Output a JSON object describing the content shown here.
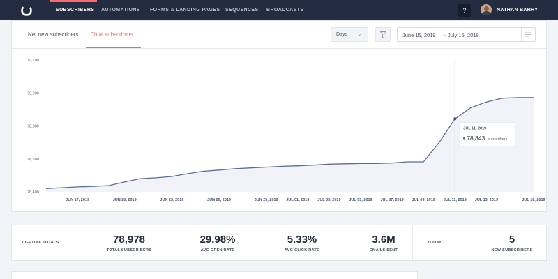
{
  "nav": {
    "logo_icon": "convertkit-logo-icon",
    "items": [
      {
        "label": "SUBSCRIBERS",
        "active": true
      },
      {
        "label": "AUTOMATIONS",
        "active": false
      },
      {
        "label": "FORMS & LANDING PAGES",
        "active": false
      },
      {
        "label": "SEQUENCES",
        "active": false
      },
      {
        "label": "BROADCASTS",
        "active": false
      }
    ],
    "help_label": "?",
    "user_name": "NATHAN BARRY",
    "accent_color": "#fb6970"
  },
  "tabs": [
    {
      "label": "Net new subscribers",
      "active": false
    },
    {
      "label": "Total subscribers",
      "active": true
    }
  ],
  "controls": {
    "interval": "Days",
    "filter_icon": "filter-icon",
    "date_start": "June 15, 2019",
    "date_arrow": "→",
    "date_end": "July 15, 2019",
    "menu_icon": "menu-lines-icon"
  },
  "chart_data": {
    "type": "area",
    "x": [
      "Jun 15",
      "Jun 16",
      "Jun 17",
      "Jun 18",
      "Jun 19",
      "Jun 20",
      "Jun 21",
      "Jun 22",
      "Jun 23",
      "Jun 24",
      "Jun 25",
      "Jun 26",
      "Jun 27",
      "Jun 28",
      "Jun 29",
      "Jun 30",
      "Jul 01",
      "Jul 02",
      "Jul 03",
      "Jul 04",
      "Jul 05",
      "Jul 06",
      "Jul 07",
      "Jul 08",
      "Jul 09",
      "Jul 10",
      "Jul 11",
      "Jul 12",
      "Jul 13",
      "Jul 14",
      "Jul 15",
      "Jul 16"
    ],
    "y": [
      78420,
      78425,
      78430,
      78433,
      78438,
      78460,
      78480,
      78485,
      78493,
      78510,
      78525,
      78532,
      78540,
      78545,
      78550,
      78555,
      78558,
      78562,
      78568,
      78570,
      78572,
      78572,
      78575,
      78582,
      78582,
      78700,
      78843,
      78910,
      78945,
      78968,
      78972,
      78972
    ],
    "xtick_labels": [
      "JUN 17, 2019",
      "JUN 20, 2019",
      "JUN 23, 2019",
      "JUN 26, 2019",
      "JUN 29, 2019",
      "JUL 01, 2019",
      "JUL 03, 2019",
      "JUL 05, 2019",
      "JUL 07, 2019",
      "JUL 09, 2019",
      "JUL 11, 2019",
      "JUL 13, 2019",
      "JUL 16, 2019"
    ],
    "xtick_index": [
      2,
      5,
      8,
      11,
      14,
      16,
      18,
      20,
      22,
      24,
      26,
      28,
      31
    ],
    "yticks": [
      "78,400",
      "78,600",
      "78,800",
      "79,000",
      "79,200"
    ],
    "ylim": [
      78400,
      79200
    ],
    "line_color": "#5d6d92",
    "fill_color": "#f1f3f8",
    "grid": false,
    "tooltip": {
      "index": 26,
      "date": "JUL 11, 2019",
      "value": "78,843",
      "unit": "subscribers"
    }
  },
  "stats": {
    "lifetime_label": "LIFETIME TOTALS",
    "items": [
      {
        "value": "78,978",
        "label": "TOTAL SUBSCRIBERS"
      },
      {
        "value": "29.98%",
        "label": "AVG OPEN RATE"
      },
      {
        "value": "5.33%",
        "label": "AVG CLICK RATE"
      },
      {
        "value": "3.6M",
        "label": "EMAILS SENT"
      }
    ],
    "today_label": "TODAY",
    "today": {
      "value": "5",
      "label": "NEW SUBSCRIBERS"
    }
  }
}
